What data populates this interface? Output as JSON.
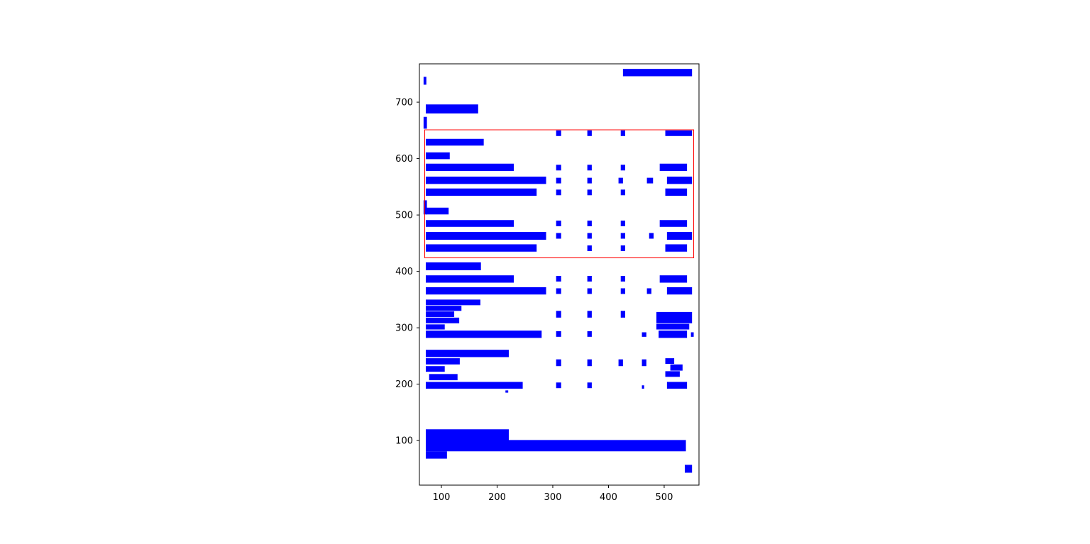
{
  "figure": {
    "background": "#ffffff",
    "plot_background": "#ffffff",
    "axis_color": "#000000",
    "tick_label_color": "#000000"
  },
  "chart_data": {
    "type": "scatter",
    "subtype": "rectangle-boxes",
    "title": "",
    "xlabel": "",
    "ylabel": "",
    "legend": null,
    "grid": false,
    "xlim": [
      60.5,
      562.5
    ],
    "ylim": [
      21,
      768
    ],
    "x_ticks": [
      100,
      200,
      300,
      400,
      500
    ],
    "y_ticks": [
      100,
      200,
      300,
      400,
      500,
      600,
      700
    ],
    "bar_color": "#0000ff",
    "highlight_color": "#ff0000",
    "highlight_box": {
      "x0": 70,
      "y0": 424,
      "x1": 553,
      "y1": 651
    },
    "bars": [
      [
        426,
        746,
        550,
        759
      ],
      [
        68,
        731,
        73,
        745
      ],
      [
        72,
        680,
        166,
        696
      ],
      [
        68,
        653,
        74,
        674
      ],
      [
        306,
        640,
        315,
        650
      ],
      [
        362,
        640,
        370,
        650
      ],
      [
        422,
        640,
        430,
        650
      ],
      [
        502,
        640,
        550,
        650
      ],
      [
        72,
        623,
        176,
        635
      ],
      [
        72,
        599,
        115,
        611
      ],
      [
        72,
        578,
        230,
        591
      ],
      [
        306,
        579,
        315,
        589
      ],
      [
        362,
        579,
        370,
        589
      ],
      [
        422,
        579,
        430,
        589
      ],
      [
        492,
        578,
        541,
        591
      ],
      [
        72,
        555,
        288,
        568
      ],
      [
        306,
        556,
        315,
        566
      ],
      [
        362,
        556,
        370,
        566
      ],
      [
        418,
        556,
        426,
        566
      ],
      [
        469,
        556,
        480,
        566
      ],
      [
        505,
        555,
        550,
        568
      ],
      [
        72,
        534,
        271,
        547
      ],
      [
        306,
        535,
        315,
        545
      ],
      [
        362,
        535,
        370,
        545
      ],
      [
        422,
        535,
        430,
        545
      ],
      [
        502,
        534,
        541,
        547
      ],
      [
        68,
        501,
        74,
        526
      ],
      [
        72,
        501,
        113,
        513
      ],
      [
        72,
        479,
        230,
        491
      ],
      [
        306,
        480,
        315,
        490
      ],
      [
        362,
        480,
        370,
        490
      ],
      [
        422,
        480,
        430,
        490
      ],
      [
        492,
        479,
        541,
        491
      ],
      [
        72,
        456,
        288,
        470
      ],
      [
        306,
        458,
        315,
        468
      ],
      [
        362,
        458,
        370,
        468
      ],
      [
        422,
        458,
        430,
        468
      ],
      [
        473,
        458,
        481,
        468
      ],
      [
        505,
        456,
        550,
        470
      ],
      [
        72,
        435,
        271,
        448
      ],
      [
        362,
        436,
        370,
        446
      ],
      [
        422,
        436,
        430,
        446
      ],
      [
        502,
        435,
        541,
        448
      ],
      [
        72,
        402,
        171,
        416
      ],
      [
        72,
        380,
        230,
        393
      ],
      [
        306,
        382,
        315,
        392
      ],
      [
        362,
        382,
        370,
        392
      ],
      [
        422,
        382,
        430,
        392
      ],
      [
        492,
        380,
        541,
        393
      ],
      [
        72,
        359,
        288,
        372
      ],
      [
        306,
        360,
        315,
        370
      ],
      [
        362,
        360,
        370,
        370
      ],
      [
        422,
        360,
        430,
        370
      ],
      [
        469,
        360,
        477,
        370
      ],
      [
        505,
        359,
        550,
        372
      ],
      [
        72,
        340,
        170,
        350
      ],
      [
        72,
        330,
        136,
        339
      ],
      [
        72,
        319,
        123,
        329
      ],
      [
        306,
        318,
        315,
        330
      ],
      [
        362,
        318,
        370,
        330
      ],
      [
        422,
        318,
        430,
        330
      ],
      [
        486,
        308,
        550,
        328
      ],
      [
        72,
        308,
        132,
        318
      ],
      [
        72,
        297,
        106,
        306
      ],
      [
        486,
        297,
        545,
        307
      ],
      [
        72,
        282,
        280,
        295
      ],
      [
        306,
        284,
        315,
        294
      ],
      [
        362,
        284,
        370,
        294
      ],
      [
        460,
        284,
        468,
        292
      ],
      [
        490,
        282,
        541,
        295
      ],
      [
        548,
        284,
        553,
        292
      ],
      [
        72,
        248,
        221,
        261
      ],
      [
        72,
        235,
        133,
        246
      ],
      [
        306,
        232,
        315,
        244
      ],
      [
        362,
        232,
        370,
        244
      ],
      [
        418,
        232,
        426,
        244
      ],
      [
        460,
        232,
        468,
        244
      ],
      [
        502,
        236,
        518,
        246
      ],
      [
        72,
        222,
        106,
        232
      ],
      [
        511,
        224,
        533,
        235
      ],
      [
        78,
        207,
        129,
        218
      ],
      [
        502,
        213,
        528,
        223
      ],
      [
        72,
        192,
        246,
        204
      ],
      [
        306,
        193,
        315,
        203
      ],
      [
        362,
        193,
        370,
        203
      ],
      [
        460,
        192,
        464,
        198
      ],
      [
        505,
        192,
        541,
        204
      ],
      [
        215,
        185,
        220,
        189
      ],
      [
        72,
        100,
        221,
        120
      ],
      [
        72,
        81,
        539,
        101
      ],
      [
        72,
        68,
        110,
        81
      ],
      [
        537,
        43,
        550,
        57
      ]
    ]
  }
}
